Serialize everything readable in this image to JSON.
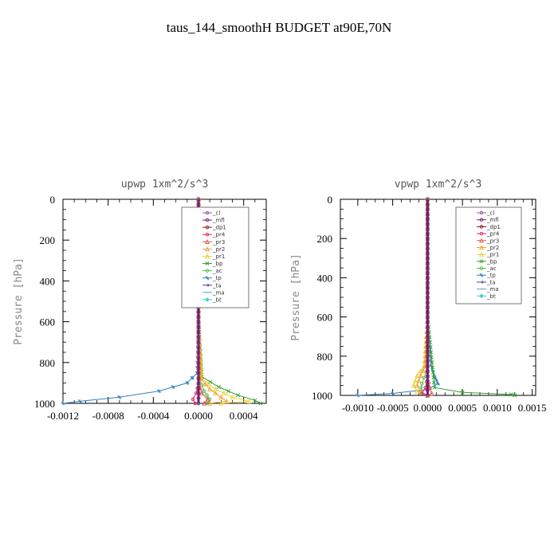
{
  "figure": {
    "title": "taus_144_smoothH  BUDGET at90E,70N"
  },
  "chart_data": [
    {
      "type": "line",
      "title": "upwp   1xm^2/s^3",
      "ylabel": "Pressure [hPa]",
      "xlabel": "",
      "xlim": [
        -0.0012,
        0.0006
      ],
      "ylim": [
        1000,
        0
      ],
      "x_ticks": [
        -0.0012,
        -0.0008,
        -0.0004,
        0.0,
        0.0004
      ],
      "x_tick_labels": [
        "-0.0012",
        "-0.0008",
        "-0.0004",
        "0.0000",
        "0.0004"
      ],
      "y_ticks": [
        0,
        200,
        400,
        600,
        800,
        1000
      ],
      "y_tick_labels": [
        "0",
        "200",
        "400",
        "600",
        "800",
        "1000"
      ],
      "legend_position": "top-right",
      "series": [
        {
          "name": "_cl",
          "color": "#8a5fa8",
          "marker": "circle",
          "y": [
            0,
            300,
            600,
            850,
            950,
            1000
          ],
          "x": [
            0,
            0,
            0,
            0,
            0,
            0
          ]
        },
        {
          "name": "_mfl",
          "color": "#7a1f6a",
          "marker": "circle",
          "y": [
            0,
            300,
            600,
            850,
            950,
            1000
          ],
          "x": [
            0,
            0,
            0,
            0,
            0,
            0
          ]
        },
        {
          "name": "_dp1",
          "color": "#8b1a1a",
          "marker": "circle",
          "y": [
            0,
            300,
            600,
            850,
            950,
            1000
          ],
          "x": [
            0,
            0,
            0,
            0,
            0,
            0
          ]
        },
        {
          "name": "_pr4",
          "color": "#d62760",
          "marker": "circle",
          "y": [
            0,
            600,
            900,
            950,
            980,
            1000
          ],
          "x": [
            0,
            0,
            0,
            -2e-05,
            -5e-05,
            -3e-05
          ]
        },
        {
          "name": "_pr3",
          "color": "#e8524a",
          "marker": "triangle",
          "y": [
            0,
            600,
            900,
            950,
            980,
            1000
          ],
          "x": [
            0,
            0,
            0,
            3e-05,
            8e-05,
            5e-05
          ]
        },
        {
          "name": "_pr2",
          "color": "#f0a030",
          "marker": "triangle",
          "y": [
            0,
            600,
            880,
            930,
            970,
            990,
            1000
          ],
          "x": [
            0,
            0,
            2e-05,
            0.0001,
            0.0002,
            0.00025,
            0.0001
          ]
        },
        {
          "name": "_pr1",
          "color": "#e8d030",
          "marker": "triangle",
          "y": [
            0,
            600,
            880,
            930,
            970,
            990,
            1000
          ],
          "x": [
            0,
            0,
            3e-05,
            0.00015,
            0.0003,
            0.00045,
            0.0002
          ]
        },
        {
          "name": "_bp",
          "color": "#30a030",
          "marker": "cross",
          "y": [
            0,
            600,
            870,
            920,
            960,
            985,
            1000
          ],
          "x": [
            0,
            0,
            3e-05,
            0.00018,
            0.00035,
            0.0005,
            0.00055
          ]
        },
        {
          "name": "_ac",
          "color": "#50c050",
          "marker": "circle",
          "y": [
            0,
            600,
            880,
            940,
            980,
            1000
          ],
          "x": [
            0,
            0,
            1e-05,
            5e-05,
            0.0001,
            8e-05
          ]
        },
        {
          "name": "_tp",
          "color": "#3080c0",
          "marker": "star",
          "y": [
            0,
            600,
            850,
            900,
            940,
            970,
            990,
            1000
          ],
          "x": [
            0,
            0,
            -1e-05,
            -0.0001,
            -0.00035,
            -0.0007,
            -0.00105,
            -0.0012
          ]
        },
        {
          "name": "_ta",
          "color": "#4040b0",
          "marker": "arrow",
          "y": [
            0,
            600,
            950,
            1000
          ],
          "x": [
            0,
            0,
            0,
            0
          ]
        },
        {
          "name": "_ma",
          "color": "#60a0c0",
          "marker": "dash",
          "y": [
            0,
            600,
            950,
            1000
          ],
          "x": [
            0,
            0,
            0,
            0
          ]
        },
        {
          "name": "_bt",
          "color": "#40d0d0",
          "marker": "diamond",
          "y": [
            0,
            600,
            950,
            1000
          ],
          "x": [
            0,
            0,
            0,
            0
          ]
        }
      ]
    },
    {
      "type": "line",
      "title": "vpwp   1xm^2/s^3",
      "ylabel": "Pressure [hPa]",
      "xlabel": "",
      "xlim": [
        -0.00125,
        0.00155
      ],
      "ylim": [
        1000,
        0
      ],
      "x_ticks": [
        -0.001,
        -0.0005,
        0.0,
        0.0005,
        0.001,
        0.0015
      ],
      "x_tick_labels": [
        "-0.0010",
        "-0.0005",
        "0.0000",
        "0.0005",
        "0.0010",
        "0.0015"
      ],
      "y_ticks": [
        0,
        200,
        400,
        600,
        800,
        1000
      ],
      "y_tick_labels": [
        "0",
        "200",
        "400",
        "600",
        "800",
        "1000"
      ],
      "legend_position": "top-right",
      "series": [
        {
          "name": "_cl",
          "color": "#8a5fa8",
          "marker": "circle",
          "y": [
            0,
            300,
            600,
            850,
            950,
            1000
          ],
          "x": [
            0,
            0,
            0,
            0,
            0,
            0
          ]
        },
        {
          "name": "_mfl",
          "color": "#7a1f6a",
          "marker": "circle",
          "y": [
            0,
            300,
            600,
            850,
            950,
            1000
          ],
          "x": [
            0,
            0,
            0,
            0,
            0,
            0
          ]
        },
        {
          "name": "_dp1",
          "color": "#8b1a1a",
          "marker": "circle",
          "y": [
            0,
            300,
            600,
            850,
            950,
            1000
          ],
          "x": [
            0,
            0,
            0,
            0,
            0,
            0
          ]
        },
        {
          "name": "_pr4",
          "color": "#d62760",
          "marker": "circle",
          "y": [
            0,
            600,
            900,
            960,
            990,
            1000
          ],
          "x": [
            0,
            0,
            0,
            -3e-05,
            -8e-05,
            0
          ]
        },
        {
          "name": "_pr3",
          "color": "#e8524a",
          "marker": "triangle",
          "y": [
            0,
            600,
            900,
            960,
            990,
            1000
          ],
          "x": [
            0,
            0,
            0,
            3e-05,
            6e-05,
            0
          ]
        },
        {
          "name": "_pr2",
          "color": "#f0a030",
          "marker": "triangle",
          "y": [
            0,
            600,
            850,
            900,
            950,
            980,
            1000
          ],
          "x": [
            0,
            0,
            -3e-05,
            -0.0001,
            -0.00015,
            -0.0001,
            0
          ]
        },
        {
          "name": "_pr1",
          "color": "#e8d030",
          "marker": "triangle",
          "y": [
            0,
            600,
            850,
            900,
            950,
            980,
            1000
          ],
          "x": [
            0,
            0,
            -5e-05,
            -0.00015,
            -0.0002,
            -0.00015,
            0
          ]
        },
        {
          "name": "_bp",
          "color": "#30a030",
          "marker": "cross",
          "y": [
            0,
            600,
            960,
            985,
            995,
            1000
          ],
          "x": [
            0,
            0,
            0.0001,
            0.0005,
            0.0012,
            0.00125
          ]
        },
        {
          "name": "_ac",
          "color": "#50c050",
          "marker": "circle",
          "y": [
            0,
            600,
            880,
            940,
            980,
            1000
          ],
          "x": [
            0,
            0,
            -2e-05,
            -8e-05,
            -0.0001,
            0
          ]
        },
        {
          "name": "_tp",
          "color": "#3080c0",
          "marker": "star",
          "y": [
            0,
            600,
            850,
            900,
            940,
            970,
            990,
            1000
          ],
          "x": [
            0,
            0,
            5e-05,
            0.0001,
            0.00015,
            0.0,
            -0.0005,
            -0.001
          ]
        },
        {
          "name": "_ta",
          "color": "#4040b0",
          "marker": "arrow",
          "y": [
            0,
            600,
            950,
            1000
          ],
          "x": [
            0,
            0,
            0,
            0
          ]
        },
        {
          "name": "_ma",
          "color": "#60a0c0",
          "marker": "dash",
          "y": [
            0,
            600,
            950,
            1000
          ],
          "x": [
            0,
            0,
            0,
            0
          ]
        },
        {
          "name": "_bt",
          "color": "#40d0d0",
          "marker": "diamond",
          "y": [
            0,
            600,
            950,
            1000
          ],
          "x": [
            0,
            0,
            0,
            0
          ]
        }
      ]
    }
  ]
}
